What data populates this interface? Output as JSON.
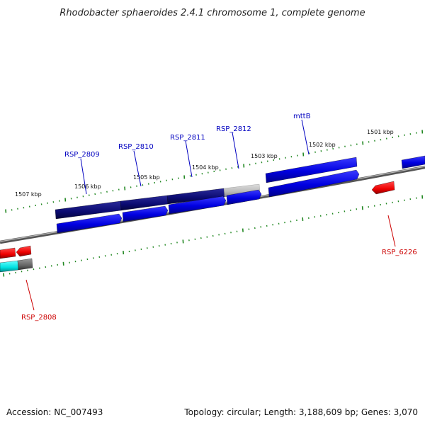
{
  "title": "Rhodobacter sphaeroides 2.4.1 chromosome 1, complete genome",
  "footer": {
    "accession": "Accession: NC_007493",
    "summary": "Topology: circular; Length: 3,188,609 bp; Genes: 3,070"
  },
  "scale": {
    "kbp_labels": [
      "1501 kbp",
      "1502 kbp",
      "1503 kbp",
      "1504 kbp",
      "1505 kbp",
      "1506 kbp",
      "1507 kbp"
    ]
  },
  "genes": {
    "forward": [
      "RSP_2809",
      "RSP_2810",
      "RSP_2811",
      "RSP_2812",
      "mttB"
    ],
    "reverse": [
      "RSP_6226",
      "RSP_2808"
    ]
  },
  "colors": {
    "forward_label": "#0000c0",
    "reverse_label": "#cc0000",
    "cds_forward": "#0000ee",
    "gene_dark": "#0a0a7a",
    "gene_reverse": "#ee0000",
    "gene_cyan": "#00e5e5",
    "gene_gray": "#666666",
    "tick": "#228822",
    "backbone": "#777777"
  }
}
